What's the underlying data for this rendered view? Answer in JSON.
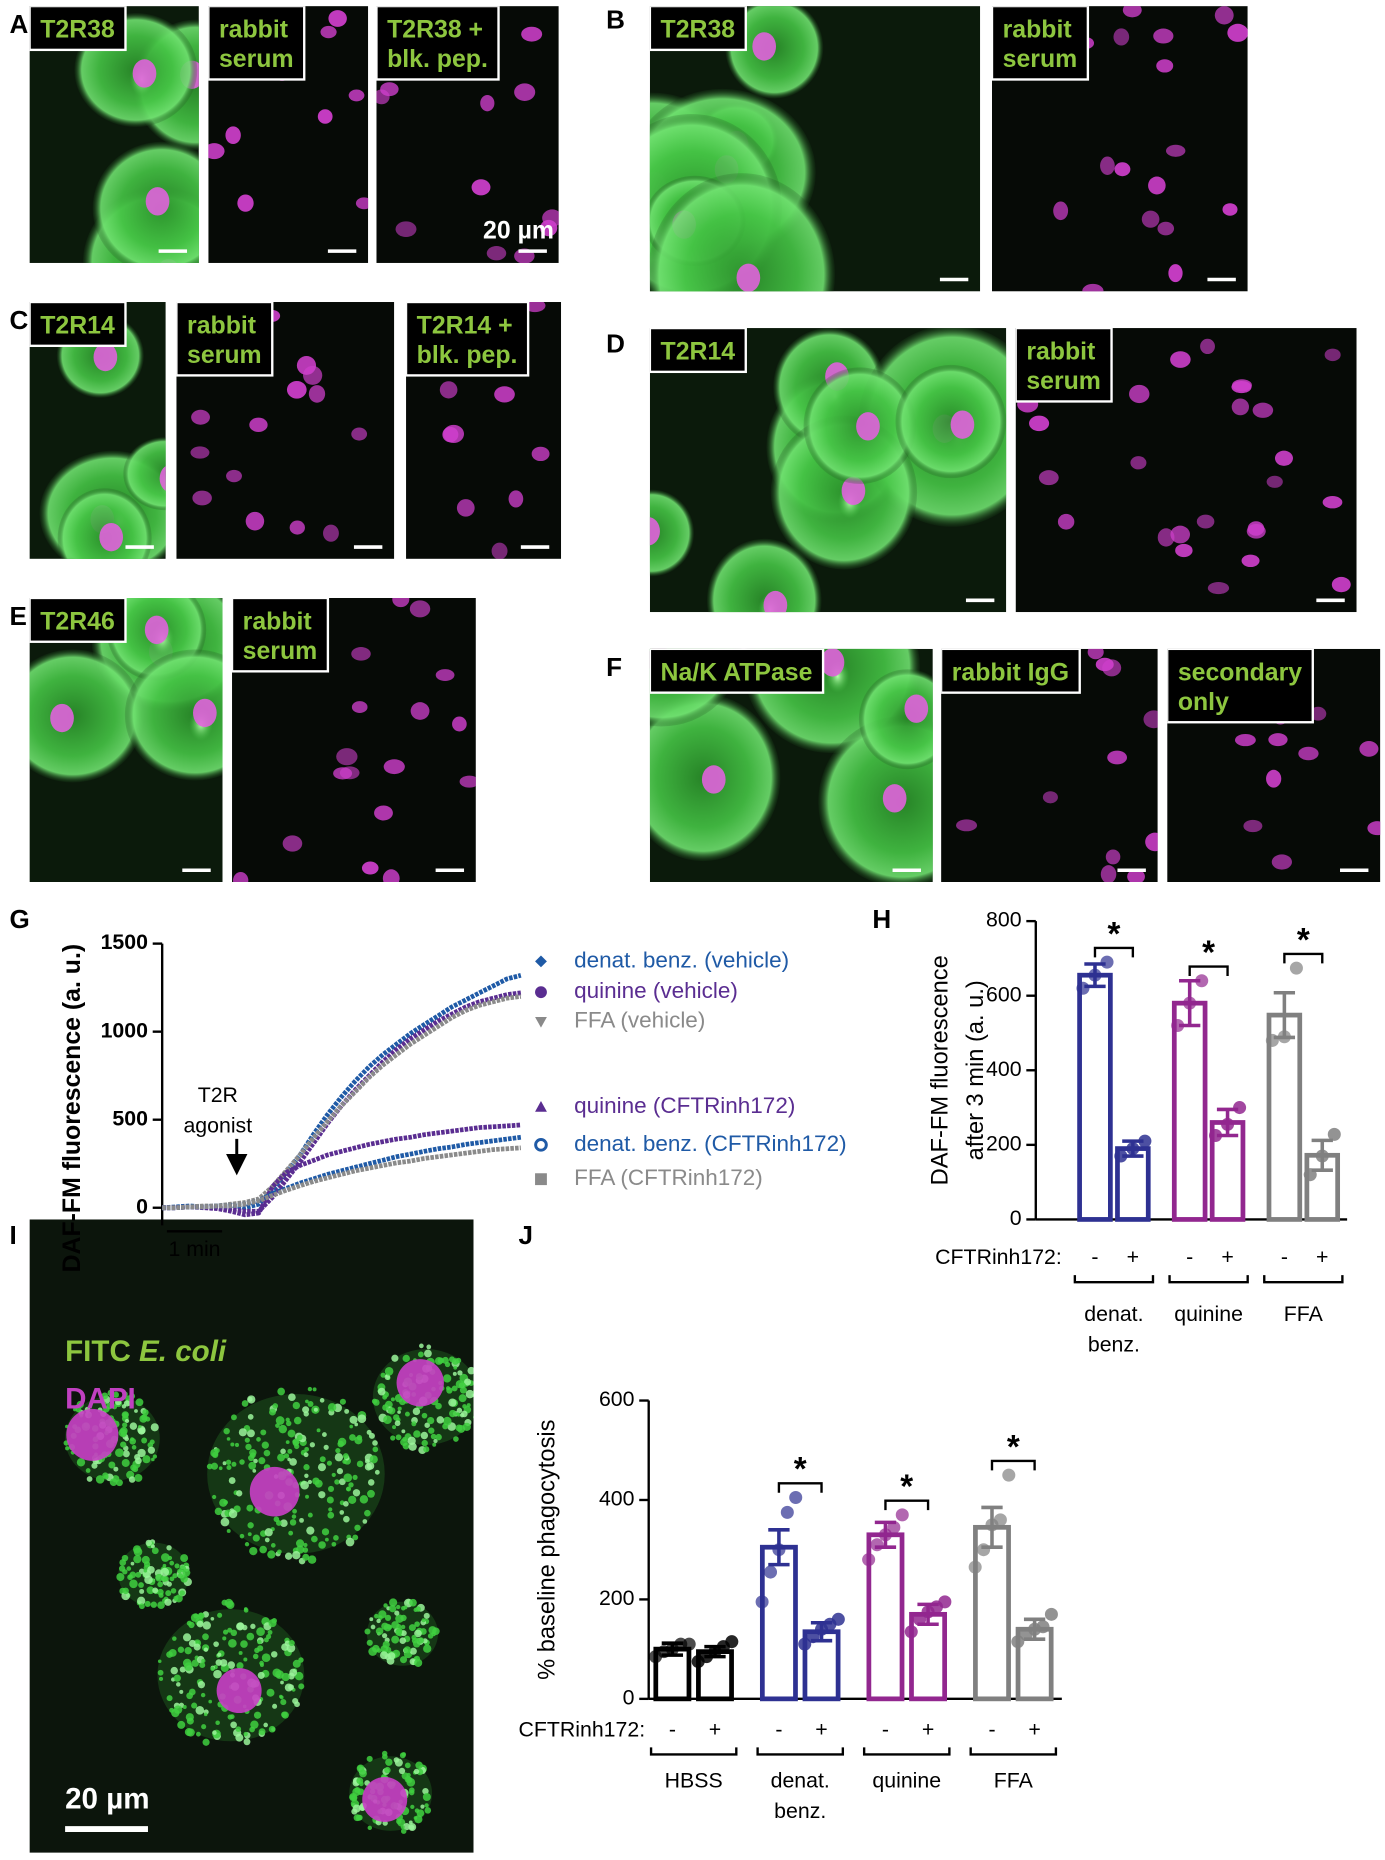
{
  "panels": [
    {
      "letter": "A",
      "images": [
        {
          "label": [
            "T2R38"
          ]
        },
        {
          "label": [
            "rabbit",
            "serum"
          ]
        },
        {
          "label": [
            "T2R38 +",
            "blk. pep."
          ],
          "scale_label": "20 µm"
        }
      ]
    },
    {
      "letter": "B",
      "images": [
        {
          "label": [
            "T2R38"
          ]
        },
        {
          "label": [
            "rabbit",
            "serum"
          ]
        }
      ]
    },
    {
      "letter": "C",
      "images": [
        {
          "label": [
            "T2R14"
          ]
        },
        {
          "label": [
            "rabbit",
            "serum"
          ]
        },
        {
          "label": [
            "T2R14 +",
            "blk. pep."
          ]
        }
      ]
    },
    {
      "letter": "D",
      "images": [
        {
          "label": [
            "T2R14"
          ]
        },
        {
          "label": [
            "rabbit",
            "serum"
          ]
        }
      ]
    },
    {
      "letter": "E",
      "images": [
        {
          "label": [
            "T2R46"
          ]
        },
        {
          "label": [
            "rabbit",
            "serum"
          ]
        }
      ]
    },
    {
      "letter": "F",
      "images": [
        {
          "label": [
            "Na/K ATPase"
          ]
        },
        {
          "label": [
            "rabbit IgG"
          ]
        },
        {
          "label": [
            "secondary",
            "only"
          ]
        }
      ]
    }
  ],
  "image_panel": {
    "letter": "I",
    "green_label": [
      "FITC",
      "E. coli"
    ],
    "magenta_label": "DAPI",
    "scale_label": "20 µm"
  },
  "chart_data": [
    {
      "panel": "G",
      "type": "line",
      "y_label": "DAF-FM fluorescence (a. u.)",
      "x": [
        0,
        0.25,
        0.5,
        0.75,
        1,
        1.25,
        1.5,
        1.75,
        2,
        2.25,
        2.5,
        2.75,
        3,
        3.25,
        3.5,
        3.75,
        4,
        4.25,
        4.5,
        4.75,
        5,
        5.25,
        5.5,
        5.75,
        6,
        6.25,
        6.5
      ],
      "xlim": [
        0,
        6.5
      ],
      "ylim": [
        -100,
        1500
      ],
      "yticks": [
        0,
        500,
        1000,
        1500
      ],
      "scale_bar": {
        "value": 1,
        "label": "1 min"
      },
      "annotation": [
        "T2R",
        "agonist"
      ],
      "series": [
        {
          "name": "denat. benz. (vehicle)",
          "color": "#1f5aa6",
          "marker": "diamond",
          "values": [
            0,
            5,
            10,
            5,
            10,
            15,
            0,
            20,
            100,
            200,
            300,
            420,
            530,
            630,
            720,
            800,
            870,
            930,
            990,
            1040,
            1090,
            1140,
            1180,
            1220,
            1260,
            1300,
            1320
          ]
        },
        {
          "name": "quinine (vehicle)",
          "color": "#5a2d91",
          "marker": "circle",
          "values": [
            0,
            0,
            5,
            5,
            0,
            -10,
            -20,
            -20,
            60,
            160,
            260,
            370,
            480,
            580,
            670,
            750,
            830,
            900,
            960,
            1010,
            1060,
            1100,
            1140,
            1170,
            1190,
            1210,
            1220
          ]
        },
        {
          "name": "FFA (vehicle)",
          "color": "#8a8a8a",
          "marker": "triangle-down",
          "values": [
            0,
            0,
            5,
            10,
            10,
            20,
            30,
            50,
            120,
            210,
            300,
            400,
            490,
            580,
            660,
            740,
            810,
            870,
            930,
            980,
            1030,
            1080,
            1120,
            1150,
            1170,
            1190,
            1200
          ]
        },
        {
          "name": "quinine (CFTRinh172)",
          "color": "#5a2d91",
          "marker": "triangle-up",
          "values": [
            0,
            0,
            5,
            0,
            -5,
            -20,
            -40,
            -30,
            120,
            200,
            240,
            270,
            300,
            320,
            340,
            360,
            375,
            390,
            400,
            415,
            425,
            435,
            445,
            455,
            460,
            465,
            470
          ]
        },
        {
          "name": "denat. benz. (CFTRinh172)",
          "color": "#1f5aa6",
          "marker": "circle-open",
          "values": [
            0,
            0,
            5,
            5,
            10,
            10,
            20,
            40,
            80,
            110,
            140,
            165,
            190,
            210,
            230,
            250,
            270,
            290,
            305,
            320,
            335,
            345,
            360,
            370,
            380,
            390,
            400
          ]
        },
        {
          "name": "FFA (CFTRinh172)",
          "color": "#8a8a8a",
          "marker": "square",
          "values": [
            0,
            0,
            5,
            5,
            10,
            10,
            20,
            40,
            70,
            100,
            125,
            150,
            170,
            190,
            210,
            225,
            240,
            255,
            265,
            280,
            290,
            300,
            310,
            320,
            330,
            335,
            340
          ]
        }
      ]
    },
    {
      "panel": "H",
      "type": "grouped-bar",
      "y_label": [
        "DAF-FM fluorescence",
        "after 3 min (a. u.)"
      ],
      "x_label": "CFTRinh172:",
      "ylim": [
        0,
        800
      ],
      "yticks": [
        0,
        200,
        400,
        600,
        800
      ],
      "groups": [
        {
          "label": [
            "denat.",
            "benz."
          ],
          "color": "#2e3192",
          "categories": [
            "-",
            "+"
          ],
          "values": [
            655,
            190
          ],
          "errors": [
            30,
            20
          ],
          "points": [
            [
              620,
              655,
              690
            ],
            [
              170,
              190,
              210
            ]
          ],
          "significance": "*"
        },
        {
          "label": [
            "quinine"
          ],
          "color": "#92278f",
          "categories": [
            "-",
            "+"
          ],
          "values": [
            580,
            260
          ],
          "errors": [
            60,
            35
          ],
          "points": [
            [
              520,
              580,
              640
            ],
            [
              225,
              255,
              300
            ]
          ],
          "significance": "*"
        },
        {
          "label": [
            "FFA"
          ],
          "color": "#808080",
          "categories": [
            "-",
            "+"
          ],
          "values": [
            548,
            172
          ],
          "errors": [
            60,
            40
          ],
          "points": [
            [
              480,
              490,
              674
            ],
            [
              120,
              170,
              228
            ]
          ],
          "significance": "*"
        }
      ]
    },
    {
      "panel": "J",
      "type": "grouped-bar",
      "y_label": [
        "% baseline phagocytosis"
      ],
      "x_label": "CFTRinh172:",
      "ylim": [
        0,
        600
      ],
      "yticks": [
        0,
        200,
        400,
        600
      ],
      "groups": [
        {
          "label": [
            "HBSS"
          ],
          "color": "#000000",
          "categories": [
            "-",
            "+"
          ],
          "values": [
            100,
            95
          ],
          "errors": [
            12,
            10
          ],
          "points": [
            [
              85,
              95,
              100,
              110,
              110
            ],
            [
              75,
              85,
              95,
              105,
              115
            ]
          ]
        },
        {
          "label": [
            "denat.",
            "benz."
          ],
          "color": "#2e3192",
          "categories": [
            "-",
            "+"
          ],
          "values": [
            305,
            135
          ],
          "errors": [
            35,
            18
          ],
          "points": [
            [
              195,
              255,
              300,
              375,
              405
            ],
            [
              110,
              125,
              140,
              150,
              160
            ]
          ],
          "significance": "*"
        },
        {
          "label": [
            "quinine"
          ],
          "color": "#92278f",
          "categories": [
            "-",
            "+"
          ],
          "values": [
            330,
            170
          ],
          "errors": [
            25,
            20
          ],
          "points": [
            [
              280,
              310,
              330,
              345,
              370
            ],
            [
              135,
              160,
              175,
              185,
              195
            ]
          ],
          "significance": "*"
        },
        {
          "label": [
            "FFA"
          ],
          "color": "#808080",
          "categories": [
            "-",
            "+"
          ],
          "values": [
            345,
            140
          ],
          "errors": [
            40,
            20
          ],
          "points": [
            [
              265,
              300,
              350,
              360,
              450
            ],
            [
              115,
              130,
              140,
              145,
              170
            ]
          ],
          "significance": "*"
        }
      ]
    }
  ]
}
